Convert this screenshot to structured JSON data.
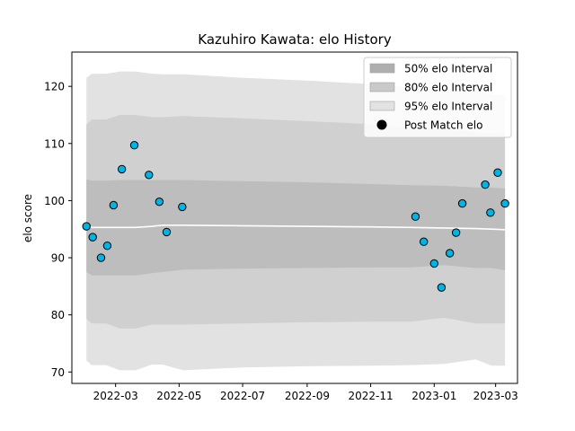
{
  "chart_data": {
    "type": "scatter",
    "title": "Kazuhiro Kawata: elo History",
    "xlabel": "",
    "ylabel": "elo score",
    "x_range": [
      "2022-01-18",
      "2023-03-22"
    ],
    "ylim": [
      68,
      126
    ],
    "x_ticks": [
      "2022-03",
      "2022-05",
      "2022-07",
      "2022-09",
      "2022-11",
      "2023-01",
      "2023-03"
    ],
    "y_ticks": [
      70,
      80,
      90,
      100,
      110,
      120
    ],
    "legend_position": "top-right",
    "grid": false,
    "legend": [
      {
        "label": "50% elo Interval",
        "kind": "band",
        "color": "#afafaf"
      },
      {
        "label": "80% elo Interval",
        "kind": "band",
        "color": "#c9c9c9"
      },
      {
        "label": "95% elo Interval",
        "kind": "band",
        "color": "#e2e2e2"
      },
      {
        "label": "Post Match elo",
        "kind": "marker",
        "color": "#000000"
      }
    ],
    "mean_line": {
      "name": "mean",
      "color": "#ffffff",
      "x": [
        "2022-02-01",
        "2022-02-06",
        "2022-02-20",
        "2022-03-05",
        "2022-03-20",
        "2022-04-05",
        "2022-04-15",
        "2022-05-05",
        "2022-07-01",
        "2022-09-01",
        "2022-11-01",
        "2022-12-10",
        "2023-01-10",
        "2023-02-10",
        "2023-02-25",
        "2023-03-10"
      ],
      "y": [
        95.5,
        95.3,
        95.3,
        95.3,
        95.3,
        95.5,
        95.7,
        95.7,
        95.6,
        95.5,
        95.4,
        95.3,
        95.2,
        95.1,
        95.0,
        94.9
      ]
    },
    "bands": [
      {
        "name": "95% elo Interval",
        "color": "#e2e2e2",
        "x": [
          "2022-02-01",
          "2022-02-06",
          "2022-02-20",
          "2022-03-05",
          "2022-03-20",
          "2022-04-05",
          "2022-04-15",
          "2022-05-05",
          "2022-07-01",
          "2022-09-01",
          "2022-11-01",
          "2022-12-10",
          "2023-01-10",
          "2023-02-10",
          "2023-02-25",
          "2023-03-10"
        ],
        "lower": [
          72.0,
          71.2,
          71.2,
          70.3,
          70.3,
          71.3,
          71.3,
          70.3,
          70.8,
          71.0,
          71.1,
          71.2,
          71.4,
          72.2,
          71.1,
          71.1
        ],
        "upper": [
          121.5,
          122.2,
          122.2,
          122.6,
          122.6,
          122.2,
          122.1,
          122.1,
          121.5,
          121.0,
          120.4,
          119.8,
          119.5,
          119.1,
          118.7,
          118.4
        ]
      },
      {
        "name": "80% elo Interval",
        "color": "#d0d0d0",
        "x": [
          "2022-02-01",
          "2022-02-06",
          "2022-02-20",
          "2022-03-05",
          "2022-03-20",
          "2022-04-05",
          "2022-04-15",
          "2022-05-05",
          "2022-07-01",
          "2022-09-01",
          "2022-11-01",
          "2022-12-10",
          "2023-01-10",
          "2023-02-10",
          "2023-02-25",
          "2023-03-10"
        ],
        "lower": [
          79.3,
          78.5,
          78.5,
          77.6,
          77.6,
          78.3,
          78.3,
          78.3,
          78.5,
          78.7,
          78.8,
          78.8,
          79.5,
          78.5,
          78.5,
          78.5
        ],
        "upper": [
          113.3,
          114.2,
          114.2,
          115.0,
          115.0,
          114.6,
          114.6,
          114.8,
          114.4,
          113.9,
          113.4,
          112.7,
          112.6,
          112.0,
          111.8,
          111.8
        ]
      },
      {
        "name": "50% elo Interval",
        "color": "#bdbdbd",
        "x": [
          "2022-02-01",
          "2022-02-06",
          "2022-02-20",
          "2022-03-05",
          "2022-03-20",
          "2022-04-05",
          "2022-04-15",
          "2022-05-05",
          "2022-07-01",
          "2022-09-01",
          "2022-11-01",
          "2022-12-10",
          "2023-01-10",
          "2023-02-10",
          "2023-02-25",
          "2023-03-10"
        ],
        "lower": [
          87.5,
          86.9,
          86.9,
          86.9,
          86.9,
          87.3,
          87.5,
          87.9,
          88.1,
          88.2,
          88.3,
          88.3,
          88.7,
          88.2,
          88.2,
          87.8
        ],
        "upper": [
          103.7,
          103.5,
          103.5,
          103.6,
          103.6,
          103.6,
          103.6,
          103.6,
          103.4,
          103.2,
          102.9,
          102.7,
          102.6,
          102.3,
          102.3,
          102.1
        ]
      }
    ],
    "series": [
      {
        "name": "Post Match elo",
        "color": "#00b4e6",
        "x": [
          "2022-02-01",
          "2022-02-07",
          "2022-02-15",
          "2022-02-21",
          "2022-02-27",
          "2022-03-07",
          "2022-03-19",
          "2022-04-02",
          "2022-04-12",
          "2022-04-19",
          "2022-05-04",
          "2022-12-14",
          "2022-12-22",
          "2023-01-01",
          "2023-01-08",
          "2023-01-16",
          "2023-01-22",
          "2023-01-28",
          "2023-02-19",
          "2023-02-24",
          "2023-03-03",
          "2023-03-10"
        ],
        "y": [
          95.5,
          93.6,
          90.0,
          92.1,
          99.2,
          105.5,
          109.7,
          104.5,
          99.8,
          94.5,
          98.9,
          97.2,
          92.8,
          89.0,
          84.8,
          90.8,
          94.4,
          99.5,
          102.8,
          97.9,
          104.9,
          99.5
        ]
      }
    ]
  }
}
